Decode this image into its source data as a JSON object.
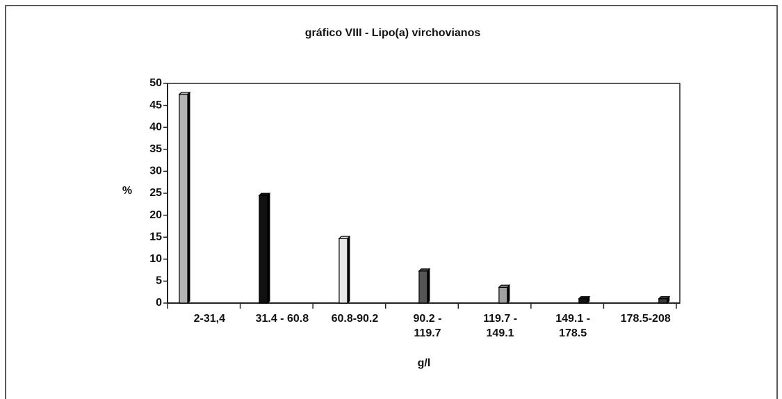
{
  "chart_data": {
    "type": "bar",
    "title": "gráfico VIII - Lipo(a) virchovianos",
    "xlabel": "g/l",
    "ylabel": "%",
    "categories": [
      "2-31,4",
      "31.4 - 60.8",
      "60.8-90.2",
      "90.2 -\n119.7",
      "119.7 -\n149.1",
      "149.1 -\n178.5",
      "178.5-208"
    ],
    "values": [
      47.5,
      24.5,
      14.7,
      7.3,
      3.6,
      1.0,
      1.0
    ],
    "colors": [
      "#b4b4b4",
      "#111111",
      "#e6e6e6",
      "#555555",
      "#a0a0a0",
      "#151515",
      "#3a3a3a"
    ],
    "ylim": [
      0,
      50
    ],
    "yticks": [
      0,
      5,
      10,
      15,
      20,
      25,
      30,
      35,
      40,
      45,
      50
    ],
    "grid": false
  }
}
